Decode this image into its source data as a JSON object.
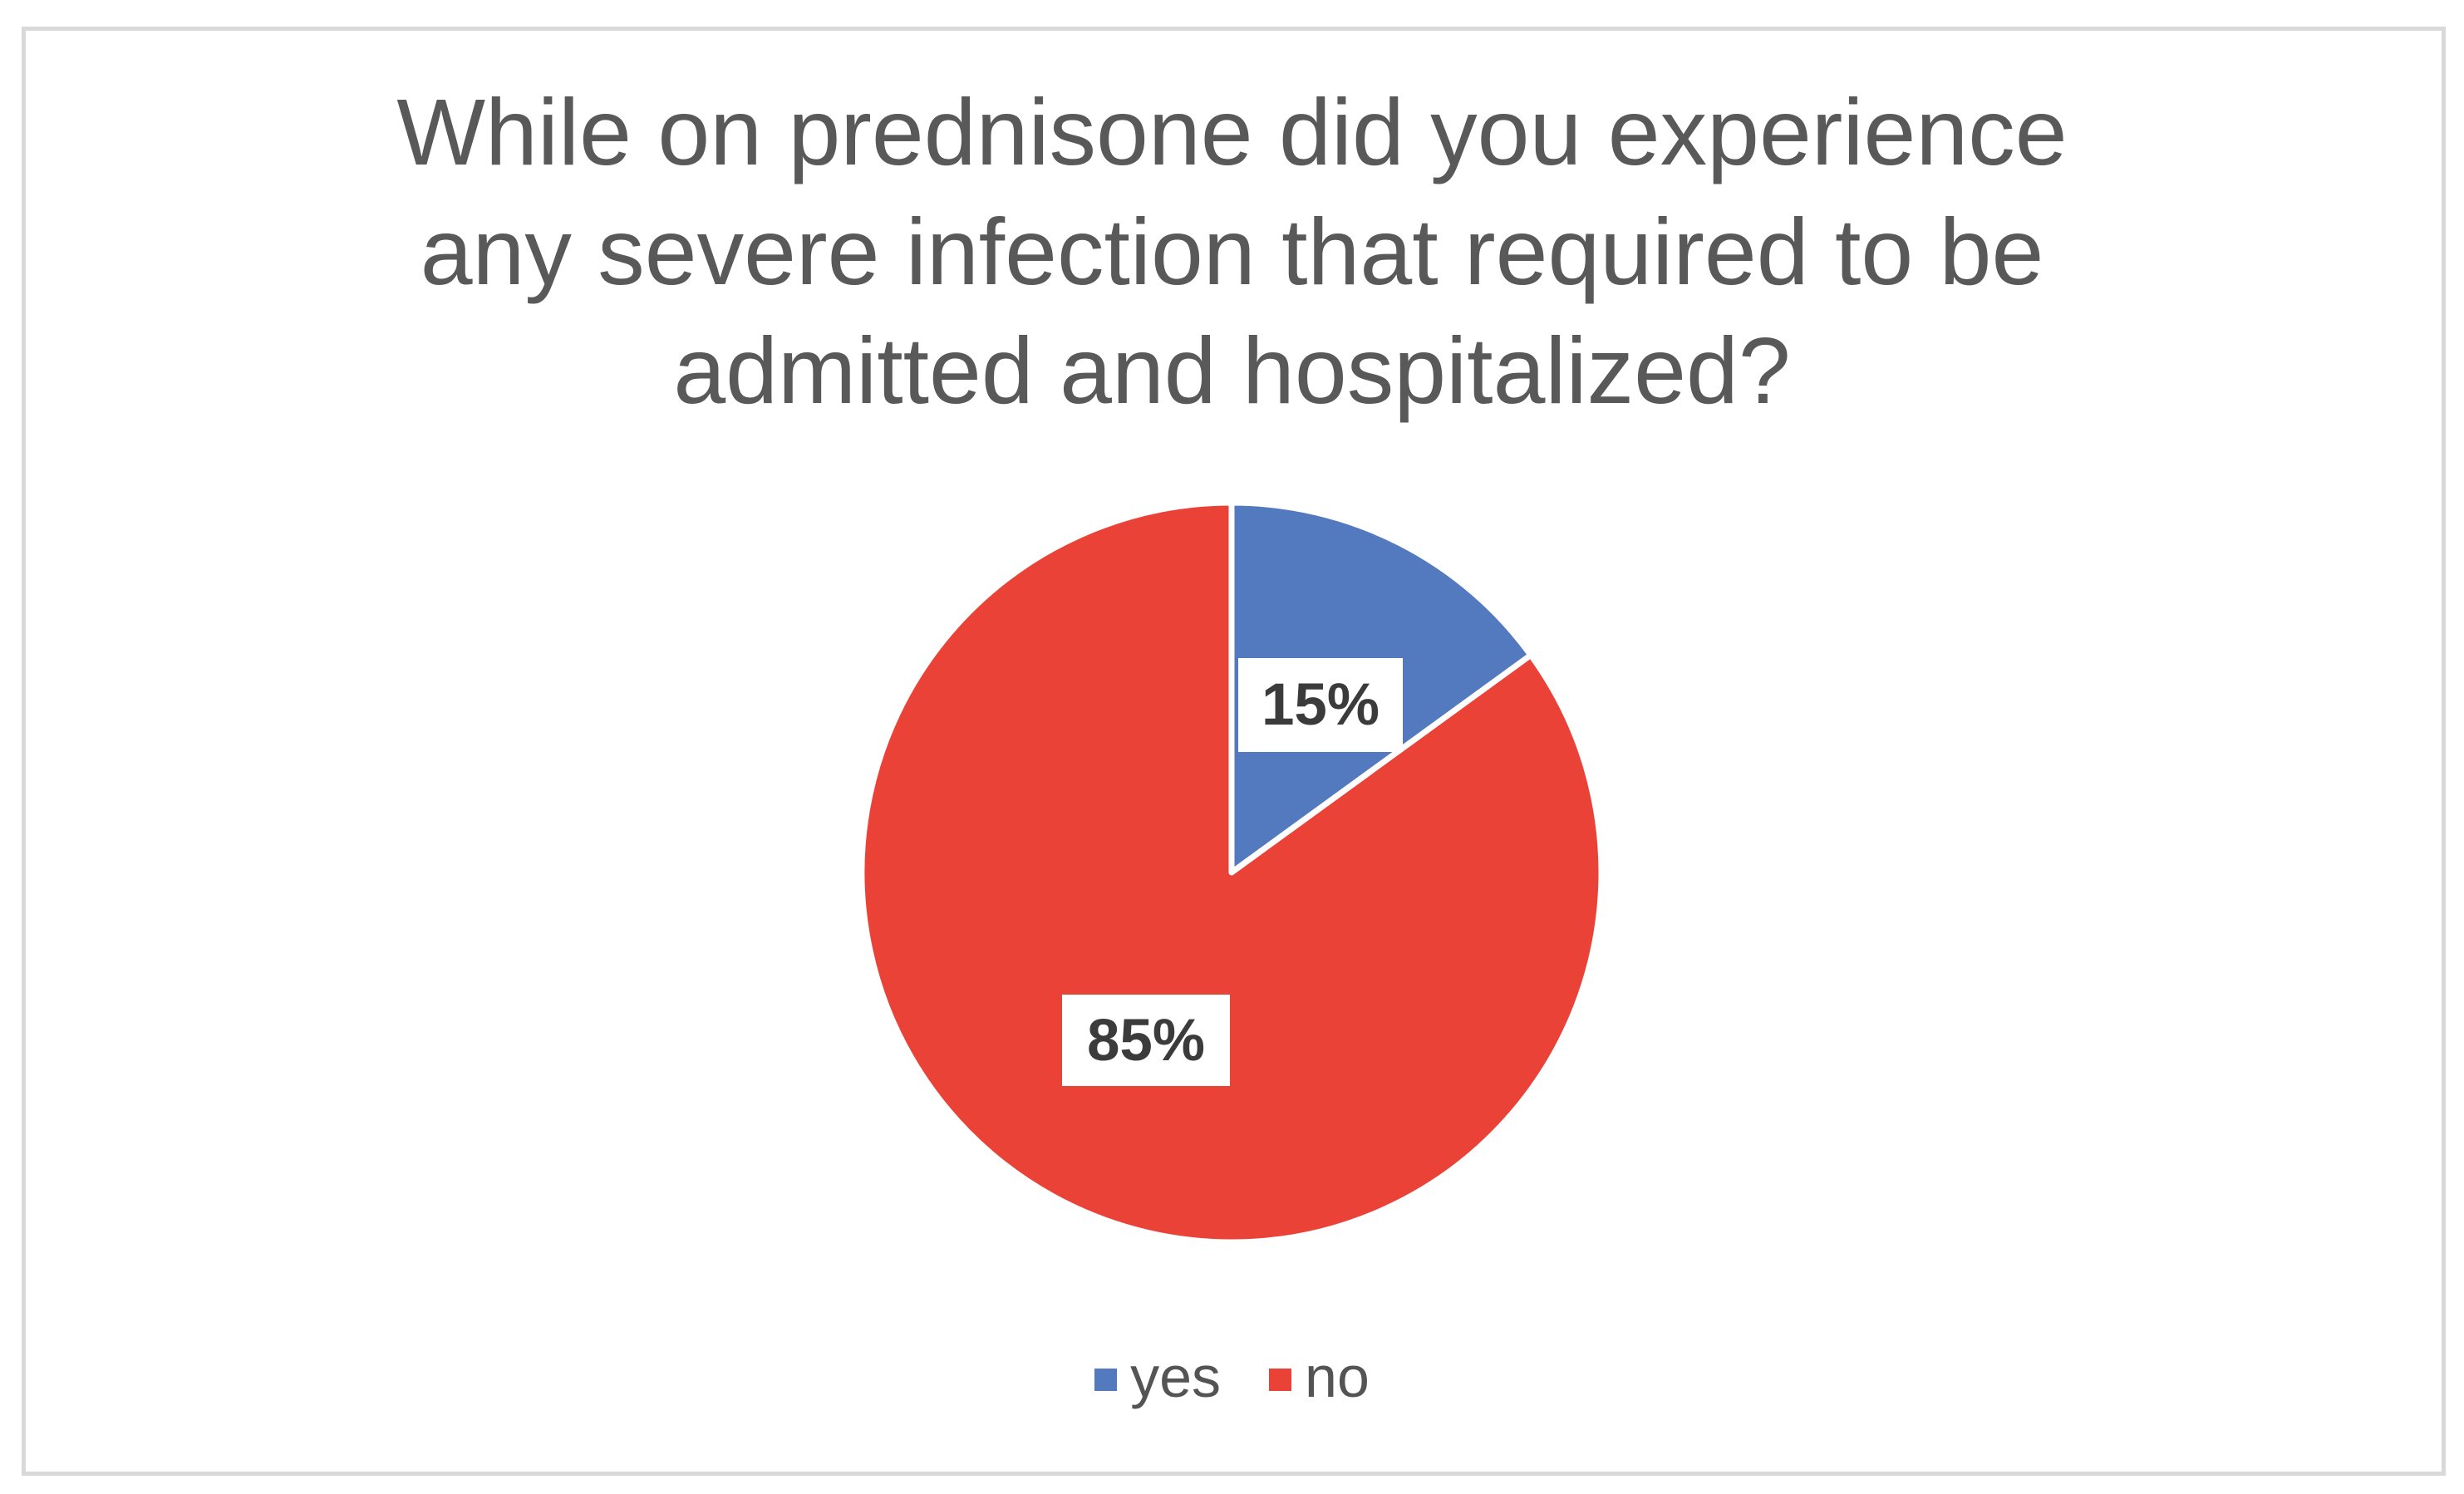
{
  "frame": {
    "border_color": "#D9D9D9",
    "background": "#ffffff"
  },
  "chart_data": {
    "type": "pie",
    "title": "While on prednisone did you experience any severe infection that required to be admitted and hospitalized?",
    "title_lines": [
      "While on prednisone did you experience",
      "any severe infection that required to be",
      "admitted and hospitalized?"
    ],
    "categories": [
      "yes",
      "no"
    ],
    "values": [
      15,
      85
    ],
    "data_labels": [
      "15%",
      "85%"
    ],
    "colors": [
      "#5379BE",
      "#EA4237"
    ],
    "slice_border_color": "#ffffff",
    "start_angle_deg": 0,
    "direction": "clockwise",
    "legend_position": "bottom",
    "title_color": "#595959",
    "data_label_text_color": "#3B3B3B",
    "legend_text_color": "#545454"
  }
}
